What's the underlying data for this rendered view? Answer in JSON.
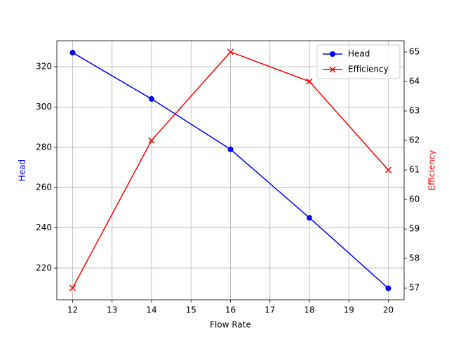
{
  "chart_data": {
    "type": "line",
    "xlabel": "Flow Rate",
    "ylabel": "Head",
    "y2label": "Efficiency",
    "x": [
      12,
      14,
      16,
      18,
      20
    ],
    "series": [
      {
        "name": "Head",
        "color": "#0000ff",
        "marker": "o",
        "values": [
          327,
          304,
          279,
          245,
          210
        ]
      },
      {
        "name": "Efficiency",
        "color": "#ff0000",
        "marker": "x",
        "axis": "y2",
        "values": [
          57,
          62,
          65,
          64,
          61
        ]
      }
    ],
    "xlim": [
      11.6,
      20.4
    ],
    "xticks": [
      12,
      13,
      14,
      15,
      16,
      17,
      18,
      19,
      20
    ],
    "ylim": [
      204.3,
      332.9
    ],
    "yticks": [
      220,
      240,
      260,
      280,
      300,
      320
    ],
    "y2lim": [
      56.6,
      65.38
    ],
    "y2ticks": [
      57,
      58,
      59,
      60,
      61,
      62,
      63,
      64,
      65
    ],
    "grid": true,
    "legend": "upper right"
  }
}
